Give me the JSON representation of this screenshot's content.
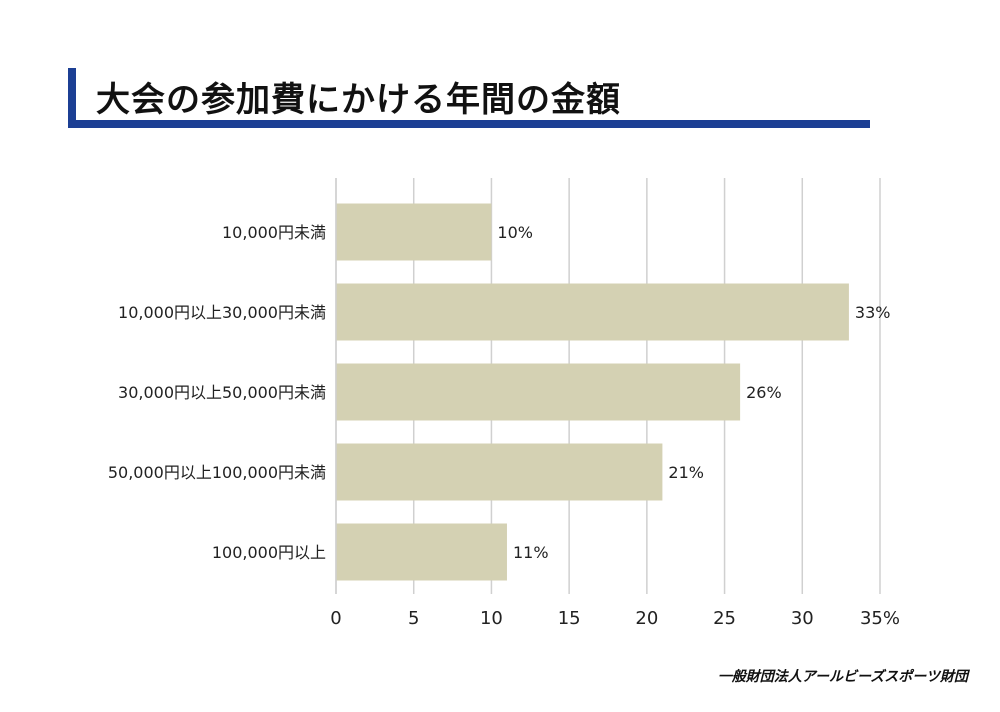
{
  "title": "大会の参加費にかける年間の金額",
  "footer": "一般財団法人アールビーズスポーツ財団",
  "colors": {
    "accent": "#1c3f94",
    "bar": "#d4d1b3",
    "grid": "#d0d0d0"
  },
  "chart_data": {
    "type": "bar",
    "orientation": "horizontal",
    "categories": [
      "10,000円未満",
      "10,000円以上30,000円未満",
      "30,000円以上50,000円未満",
      "50,000円以上100,000円未満",
      "100,000円以上"
    ],
    "values": [
      10,
      33,
      26,
      21,
      11
    ],
    "data_labels": [
      "10%",
      "33%",
      "26%",
      "21%",
      "11%"
    ],
    "x_ticks": [
      "0",
      "5",
      "10",
      "15",
      "20",
      "25",
      "30",
      "35%"
    ],
    "xlim": [
      0,
      35
    ],
    "grid": true,
    "legend": "none",
    "title": "",
    "xlabel": "",
    "ylabel": ""
  }
}
